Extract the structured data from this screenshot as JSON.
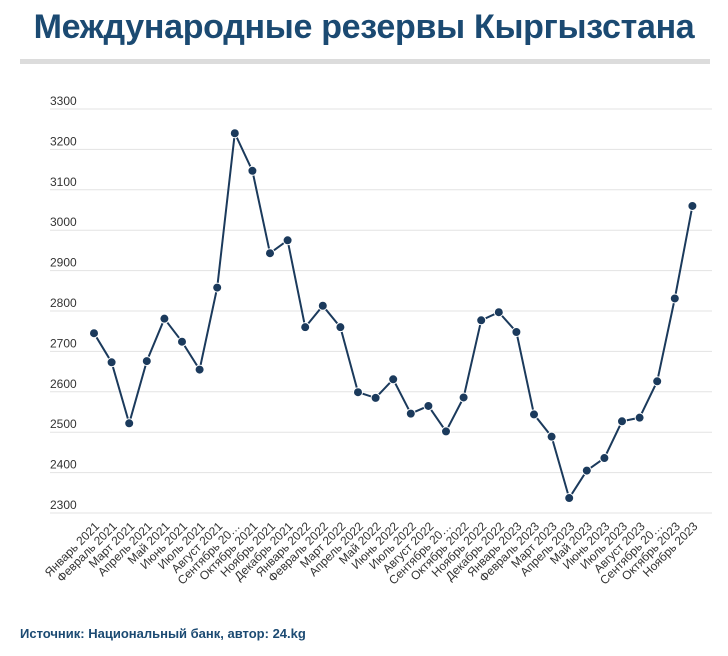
{
  "title": "Международные резервы Кыргызстана",
  "source": "Источник: Национальный банк, автор: 24.kg",
  "colors": {
    "title": "#1b4a72",
    "line": "#1b3a5c",
    "grid": "#e3e3e3"
  },
  "chart_data": {
    "type": "line",
    "title": "Международные резервы Кыргызстана",
    "xlabel": "",
    "ylabel": "",
    "ylim": [
      2300,
      3300
    ],
    "yticks": [
      2300,
      2400,
      2500,
      2600,
      2700,
      2800,
      2900,
      3000,
      3100,
      3200,
      3300
    ],
    "grid": true,
    "legend": "none",
    "categories": [
      "Январь 2021",
      "Февраль 2021",
      "Март 2021",
      "Апрель 2021",
      "Май 2021",
      "Июнь 2021",
      "Июль 2021",
      "Август 2021",
      "Сентябрь 20…",
      "Октябрь 2021",
      "Ноябрь 2021",
      "Декабрь 2021",
      "Январь 2022",
      "Февраль 2022",
      "Март 2022",
      "Апрель 2022",
      "Май 2022",
      "Июнь 2022",
      "Июль 2022",
      "Август 2022",
      "Сентябрь 20…",
      "Октябрь 2022",
      "Ноябрь 2022",
      "Декабрь 2022",
      "Январь 2023",
      "Февраль 2023",
      "Март 2023",
      "Апрель 2023",
      "Май 2023",
      "Июнь 2023",
      "Июль 2023",
      "Август 2023",
      "Сентябрь 20…",
      "Октябрь 2023",
      "Ноябрь 2023"
    ],
    "values": [
      2745,
      2673,
      2522,
      2676,
      2781,
      2724,
      2655,
      2858,
      3240,
      3147,
      2943,
      2975,
      2760,
      2813,
      2760,
      2599,
      2585,
      2631,
      2546,
      2565,
      2502,
      2586,
      2777,
      2797,
      2748,
      2544,
      2489,
      2337,
      2405,
      2436,
      2527,
      2536,
      2626,
      2831,
      3060
    ]
  }
}
